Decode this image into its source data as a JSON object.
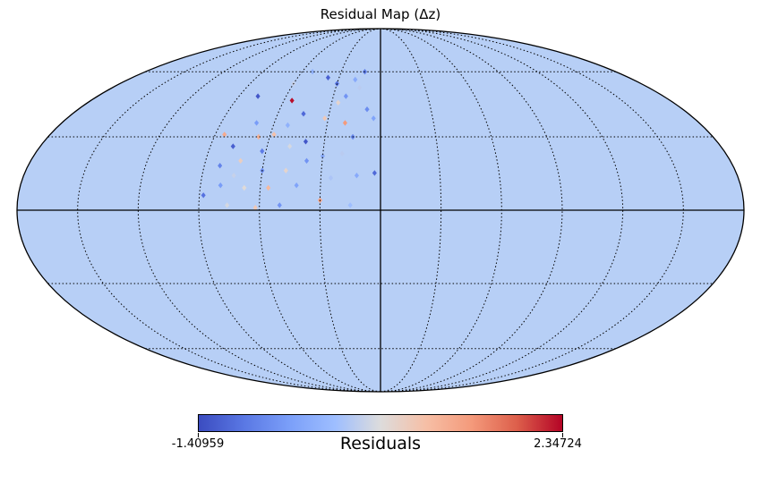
{
  "title": "Residual Map (Δz)",
  "projection": "mollweide",
  "colormap": "coolwarm",
  "colors": {
    "background_pixel": "#b7cff6",
    "cmap_low": "#3b4cc0",
    "cmap_mid": "#dddcdc",
    "cmap_high": "#b40426",
    "graticule": "#000000"
  },
  "graticule": {
    "style": "dotted",
    "lon_step_deg": 30,
    "lat_step_deg": 30
  },
  "colorbar": {
    "label": "Residuals",
    "min_label": "-1.40959",
    "max_label": "2.34724"
  },
  "chart_data": {
    "type": "heatmap",
    "title": "Residual Map (Δz)",
    "value_range": [
      -1.40959,
      2.34724
    ],
    "colorbar_label": "Residuals",
    "background_value": -0.45,
    "pixels": [
      {
        "lon": 18,
        "lat": 56,
        "v": -0.3
      },
      {
        "lon": 14,
        "lat": 52,
        "v": 0.2
      },
      {
        "lon": 12,
        "lat": 60,
        "v": -0.9
      },
      {
        "lon": 22,
        "lat": 48,
        "v": -0.6
      },
      {
        "lon": 30,
        "lat": 54,
        "v": -1.0
      },
      {
        "lon": 38,
        "lat": 57,
        "v": -1.2
      },
      {
        "lon": 26,
        "lat": 45,
        "v": 0.6
      },
      {
        "lon": 55,
        "lat": 46,
        "v": 2.3
      },
      {
        "lon": 45,
        "lat": 40,
        "v": -1.1
      },
      {
        "lon": 20,
        "lat": 36,
        "v": 1.4
      },
      {
        "lon": 32,
        "lat": 38,
        "v": 0.8
      },
      {
        "lon": 52,
        "lat": 35,
        "v": -0.2
      },
      {
        "lon": 8,
        "lat": 42,
        "v": -0.7
      },
      {
        "lon": 4,
        "lat": 38,
        "v": -0.4
      },
      {
        "lon": 15,
        "lat": 30,
        "v": -0.8
      },
      {
        "lon": 58,
        "lat": 31,
        "v": 0.9
      },
      {
        "lon": 70,
        "lat": 36,
        "v": -0.5
      },
      {
        "lon": 66,
        "lat": 30,
        "v": 1.1
      },
      {
        "lon": 40,
        "lat": 28,
        "v": -1.3
      },
      {
        "lon": 48,
        "lat": 26,
        "v": 0.4
      },
      {
        "lon": 62,
        "lat": 24,
        "v": -0.9
      },
      {
        "lon": 78,
        "lat": 26,
        "v": -1.2
      },
      {
        "lon": 85,
        "lat": 31,
        "v": 1.2
      },
      {
        "lon": 72,
        "lat": 20,
        "v": 0.7
      },
      {
        "lon": 30,
        "lat": 22,
        "v": -0.3
      },
      {
        "lon": 20,
        "lat": 23,
        "v": 0.2
      },
      {
        "lon": 38,
        "lat": 20,
        "v": -0.6
      },
      {
        "lon": 48,
        "lat": 16,
        "v": 0.6
      },
      {
        "lon": 60,
        "lat": 16,
        "v": -0.7
      },
      {
        "lon": 74,
        "lat": 14,
        "v": 0.3
      },
      {
        "lon": 82,
        "lat": 18,
        "v": -0.8
      },
      {
        "lon": 25,
        "lat": 13,
        "v": 0.1
      },
      {
        "lon": 12,
        "lat": 14,
        "v": -0.3
      },
      {
        "lon": 3,
        "lat": 15,
        "v": -1.1
      },
      {
        "lon": 42,
        "lat": 10,
        "v": -0.4
      },
      {
        "lon": 56,
        "lat": 9,
        "v": 1.0
      },
      {
        "lon": 68,
        "lat": 9,
        "v": 0.5
      },
      {
        "lon": 80,
        "lat": 10,
        "v": -0.5
      },
      {
        "lon": 88,
        "lat": 6,
        "v": -1.0
      },
      {
        "lon": 30,
        "lat": 4,
        "v": 1.3
      },
      {
        "lon": 15,
        "lat": 2,
        "v": 0.0
      },
      {
        "lon": 50,
        "lat": 2,
        "v": -0.6
      },
      {
        "lon": 62,
        "lat": 1,
        "v": 0.8
      },
      {
        "lon": 76,
        "lat": 2,
        "v": 0.4
      },
      {
        "lon": 52,
        "lat": 60,
        "v": -0.2
      },
      {
        "lon": 60,
        "lat": 54,
        "v": 0.3
      },
      {
        "lon": 78,
        "lat": 48,
        "v": -1.3
      }
    ]
  }
}
